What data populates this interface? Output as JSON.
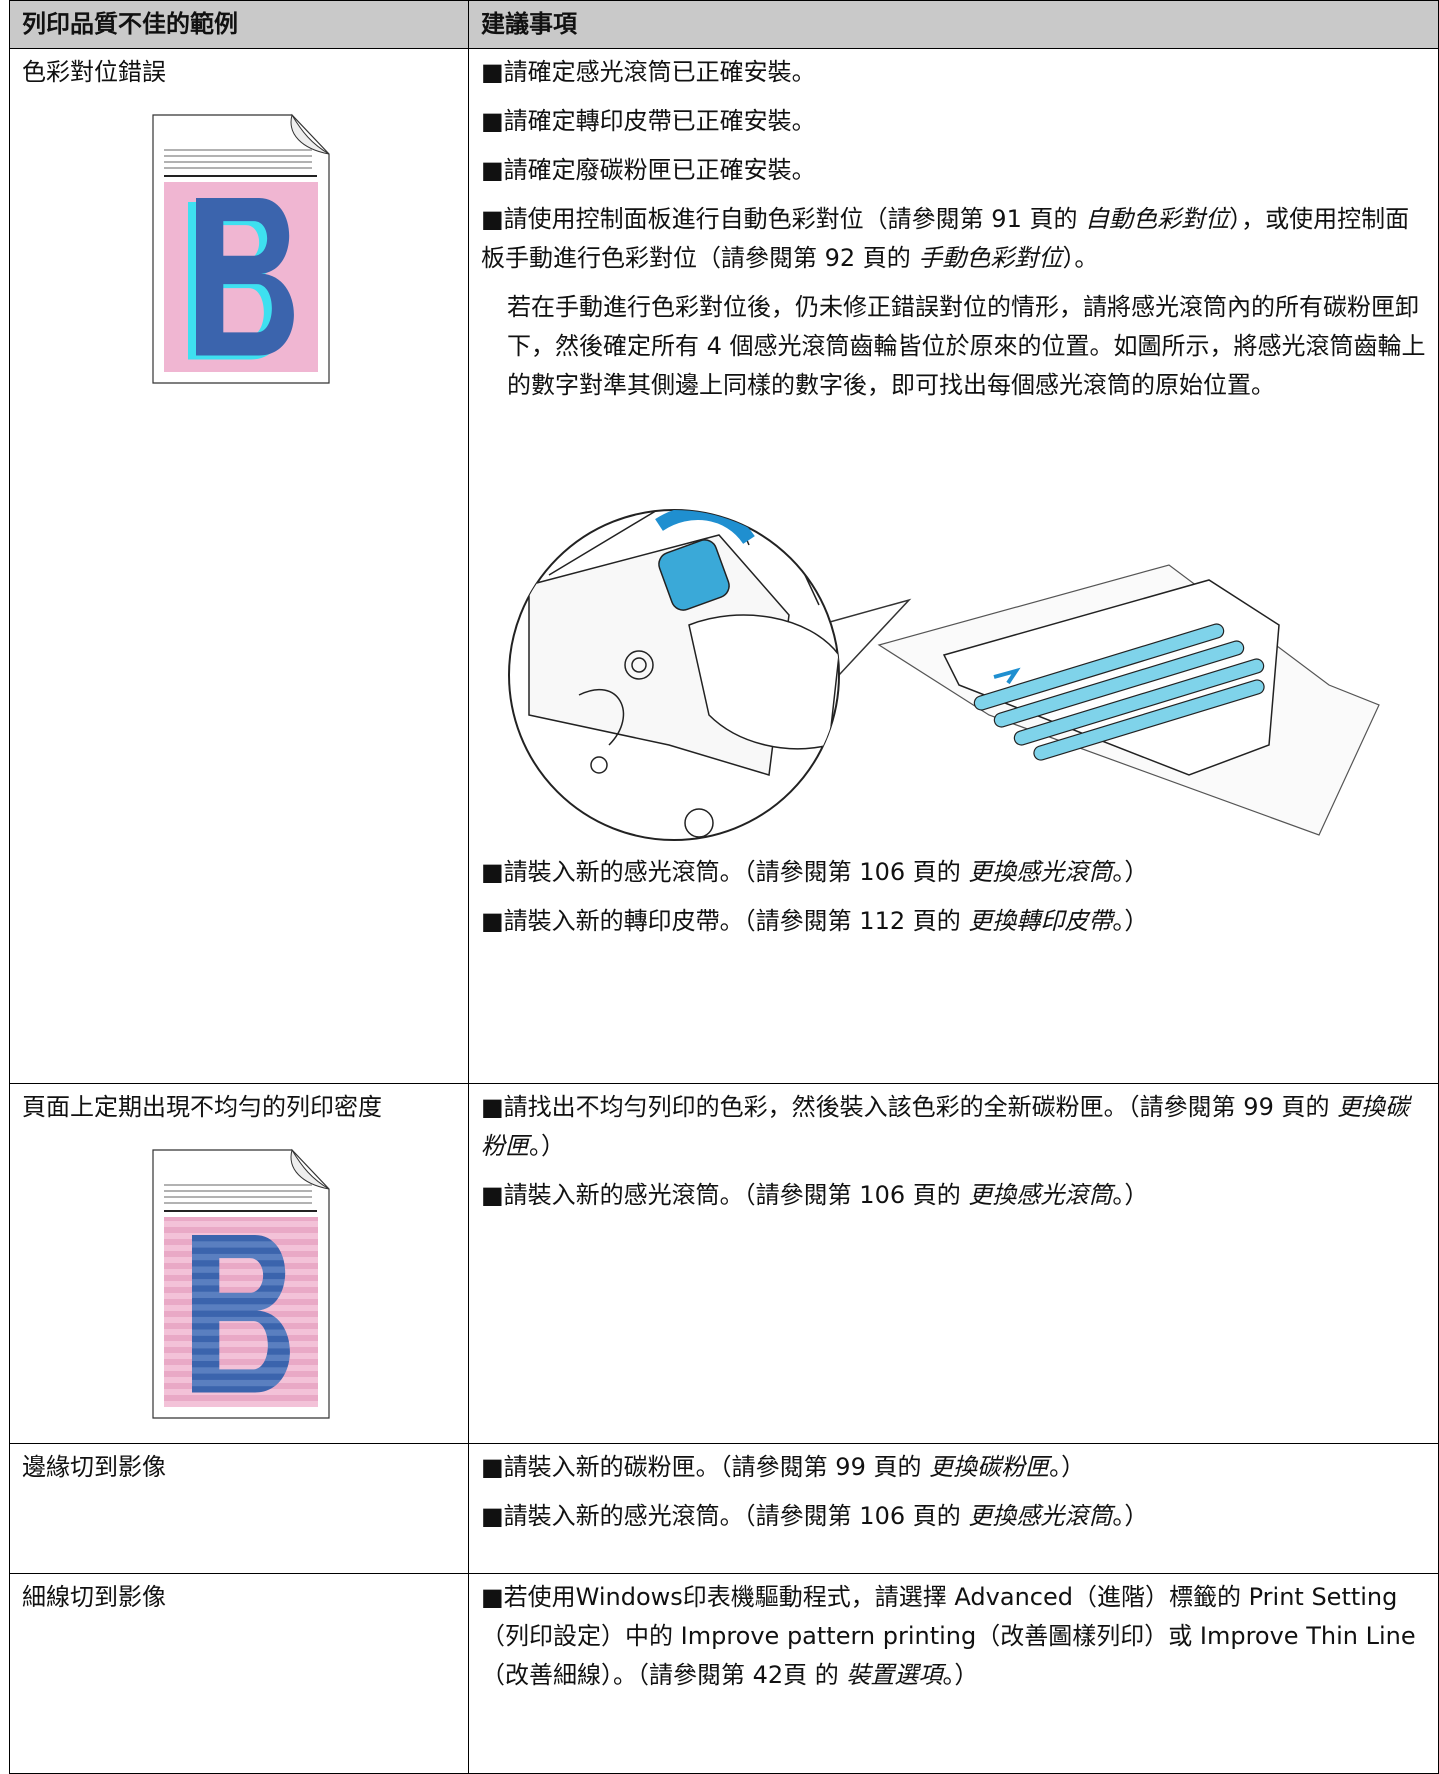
{
  "table": {
    "header": [
      "列印品質不佳的範例",
      "建議事項"
    ],
    "rows": [
      {
        "problem": "色彩對位錯誤",
        "advice": [
          [
            "■請確定感光滾筒已正確安裝。"
          ],
          [
            "■請確定轉印皮帶已正確安裝。"
          ],
          [
            "■請確定廢碳粉匣已正確安裝。"
          ],
          [
            "■請使用控制面板進行自動色彩對位（請參閱第 91 頁的 ",
            "自動色彩對位",
            "），或使用控制面板手動進行色彩對位（請參閱第 92 頁的 ",
            "手動色彩對位",
            "）。"
          ],
          [
            "若在手動進行色彩對位後，仍未修正錯誤對位的情形，請將感光滾筒內的所有碳粉匣卸下，然後確定所有 4 個感光滾筒齒輪皆位於原來的位置。如圖所示，將感光滾筒齒輪上的數字對準其側邊上同樣的數字後，即可找出每個感光滾筒的原始位置。"
          ]
        ],
        "more_advice": [
          [
            "■請裝入新的感光滾筒。（請參閱第 106 頁的 ",
            "更換感光滾筒",
            "。）"
          ],
          [
            "■請裝入新的轉印皮帶。（請參閱第 112 頁的 ",
            "更換轉印皮帶",
            "。）"
          ]
        ]
      },
      {
        "problem": "頁面上定期出現不均勻的列印密度",
        "advice": [
          [
            "■請找出不均勻列印的色彩，然後裝入該色彩的全新碳粉匣。（請參閱第 99 頁的 ",
            "更換碳粉匣",
            "。）"
          ],
          [
            "■請裝入新的感光滾筒。（請參閱第 106 頁的 ",
            "更換感光滾筒",
            "。）"
          ]
        ]
      },
      {
        "problem": "邊緣切到影像",
        "advice": [
          [
            "■請裝入新的碳粉匣。（請參閱第 99 頁的 ",
            "更換碳粉匣",
            "。）"
          ],
          [
            "■請裝入新的感光滾筒。（請參閱第 106 頁的 ",
            "更換感光滾筒",
            "。）"
          ]
        ]
      },
      {
        "problem": "細線切到影像",
        "advice": [
          [
            "■若使用Windows印表機驅動程式，請選擇 Advanced（進階）標籤的 Print Setting（列印設定）中的 Improve pattern printing（改善圖樣列印）或 Improve Thin Line（改善細線）。（請參閱第 42頁 的 ",
            "裝置選項",
            "。）"
          ]
        ]
      }
    ]
  }
}
